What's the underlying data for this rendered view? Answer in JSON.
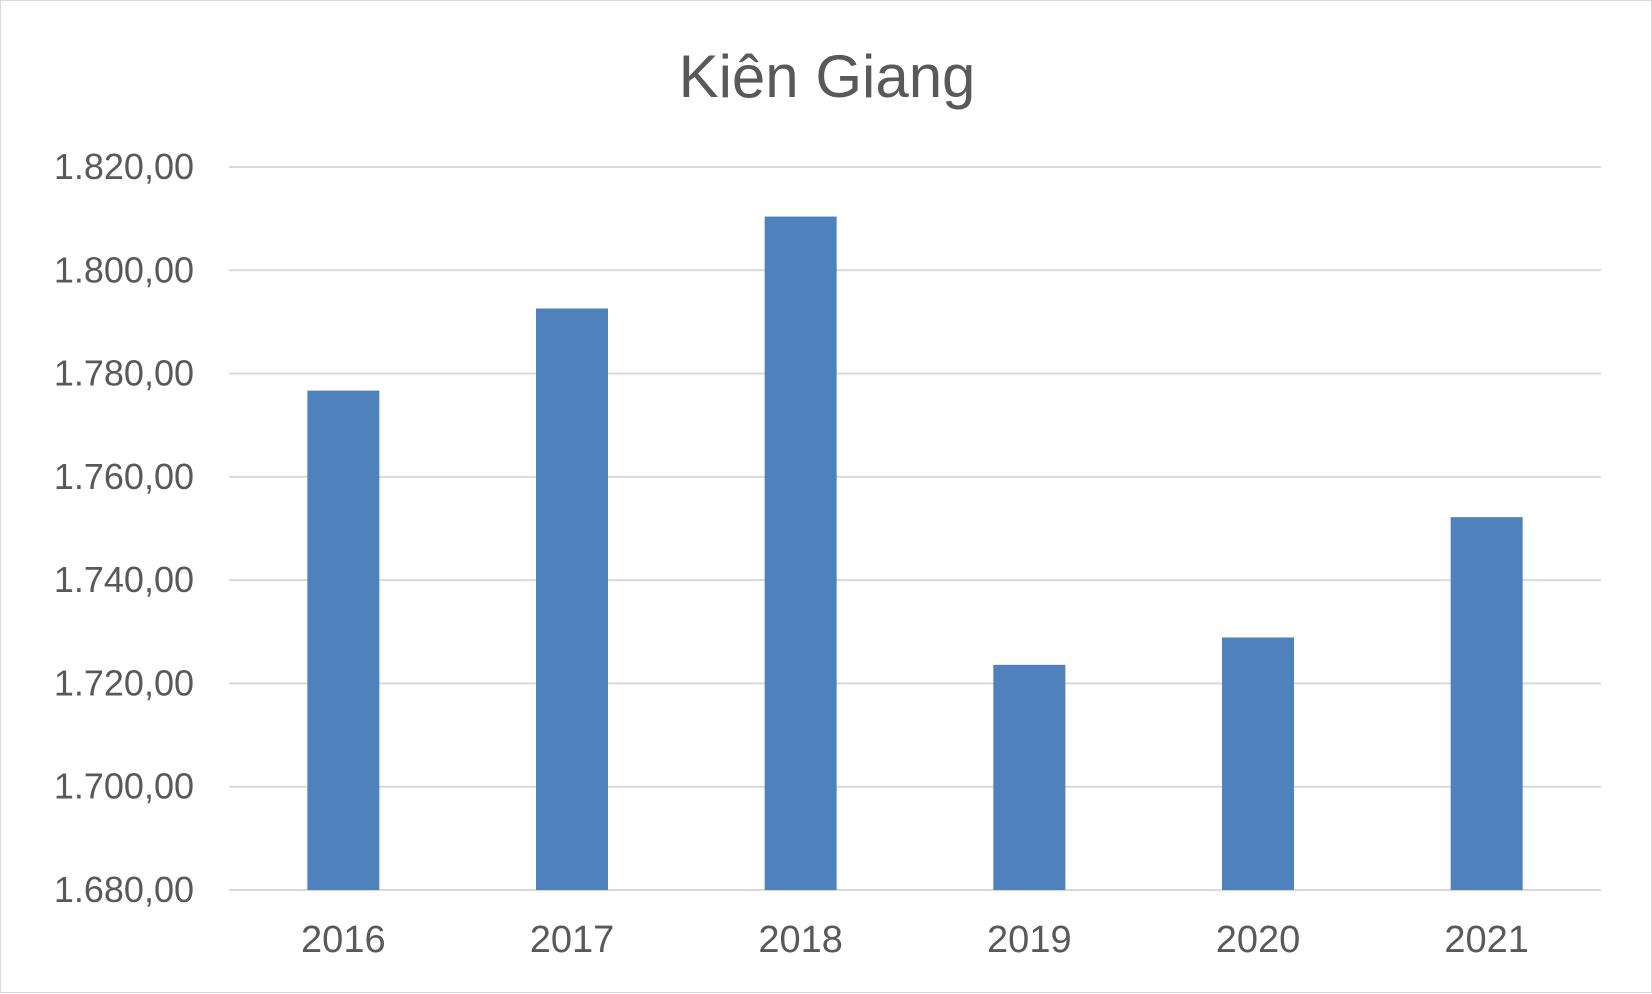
{
  "chart_data": {
    "type": "bar",
    "title": "Kiên Giang",
    "categories": [
      "2016",
      "2017",
      "2018",
      "2019",
      "2020",
      "2021"
    ],
    "values": [
      1776.7,
      1792.6,
      1810.4,
      1723.6,
      1728.9,
      1752.2
    ],
    "ylim": [
      1680,
      1820
    ],
    "ytick_values": [
      1680,
      1700,
      1720,
      1740,
      1760,
      1780,
      1800,
      1820
    ],
    "ytick_labels": [
      "1.680,00",
      "1.700,00",
      "1.720,00",
      "1.740,00",
      "1.760,00",
      "1.780,00",
      "1.800,00",
      "1.820,00"
    ],
    "xlabel": "",
    "ylabel": "",
    "grid": true,
    "legend": "none",
    "bar_color": "#4f81bd"
  }
}
